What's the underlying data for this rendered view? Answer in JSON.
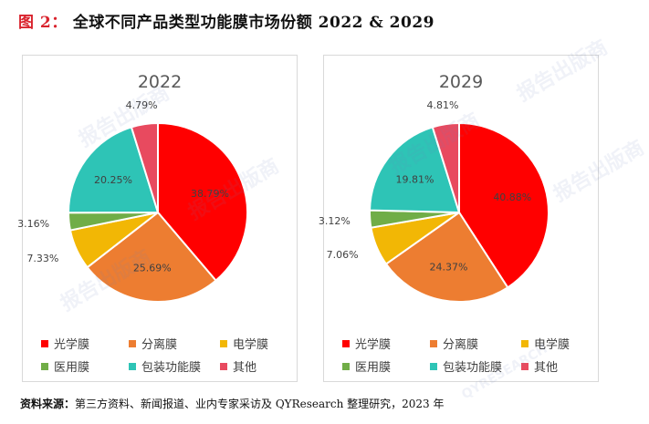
{
  "figure": {
    "label": "图 2：",
    "title": "全球不同产品类型功能膜市场份额 2022 & 2029"
  },
  "source": {
    "label": "资料来源：",
    "text": "第三方资料、新闻报道、业内专家采访及 QYResearch 整理研究，2023 年"
  },
  "watermark": {
    "text": "报告出版商",
    "brand": "QYRESEARCH"
  },
  "chart_data": [
    {
      "type": "pie",
      "title": "2022",
      "categories": [
        "光学膜",
        "分离膜",
        "电学膜",
        "医用膜",
        "包装功能膜",
        "其他"
      ],
      "values": [
        38.79,
        25.69,
        7.33,
        3.16,
        20.25,
        4.79
      ],
      "value_labels": [
        "38.79%",
        "25.69%",
        "7.33%",
        "3.16%",
        "20.25%",
        "4.79%"
      ],
      "colors": [
        "#ff0000",
        "#ed7d31",
        "#f2b705",
        "#70ad47",
        "#2ec4b6",
        "#e84a5f"
      ],
      "legend": "bottom"
    },
    {
      "type": "pie",
      "title": "2029",
      "categories": [
        "光学膜",
        "分离膜",
        "电学膜",
        "医用膜",
        "包装功能膜",
        "其他"
      ],
      "values": [
        40.88,
        24.37,
        7.06,
        3.12,
        19.81,
        4.81
      ],
      "value_labels": [
        "40.88%",
        "24.37%",
        "7.06%",
        "3.12%",
        "19.81%",
        "4.81%"
      ],
      "colors": [
        "#ff0000",
        "#ed7d31",
        "#f2b705",
        "#70ad47",
        "#2ec4b6",
        "#e84a5f"
      ],
      "legend": "bottom"
    }
  ]
}
